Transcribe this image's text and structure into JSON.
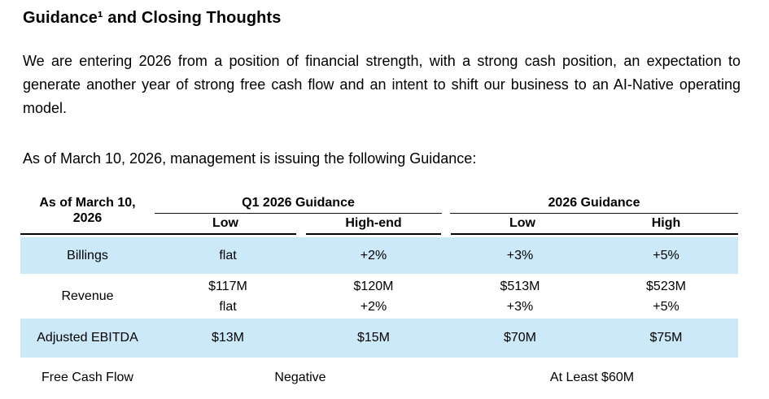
{
  "heading": "Guidance¹ and Closing Thoughts",
  "intro_paragraph": "We are entering 2026 from a position of financial strength, with a strong cash position, an expectation to generate another year of strong free cash flow and an intent to shift our business to an AI-Native operating model.",
  "guidance_intro": "As of March 10, 2026, management is issuing the following Guidance:",
  "table": {
    "corner_header": "As of March 10,\n2026",
    "groups": [
      {
        "label": "Q1 2026 Guidance",
        "sub": [
          "Low",
          "High-end"
        ]
      },
      {
        "label": "2026 Guidance",
        "sub": [
          "Low",
          "High"
        ]
      }
    ],
    "rows": [
      {
        "label": "Billings",
        "values": [
          "flat",
          "+2%",
          "+3%",
          "+5%"
        ]
      },
      {
        "label": "Revenue",
        "values": [
          "$117M\nflat",
          "$120M\n+2%",
          "$513M\n+3%",
          "$523M\n+5%"
        ]
      },
      {
        "label": "Adjusted EBITDA",
        "values": [
          "$13M",
          "$15M",
          "$70M",
          "$75M"
        ]
      }
    ],
    "footer_row": {
      "label": "Free Cash Flow",
      "q1_value": "Negative",
      "fy_value": "At Least $60M"
    },
    "highlight_color": "#cce9f9"
  }
}
